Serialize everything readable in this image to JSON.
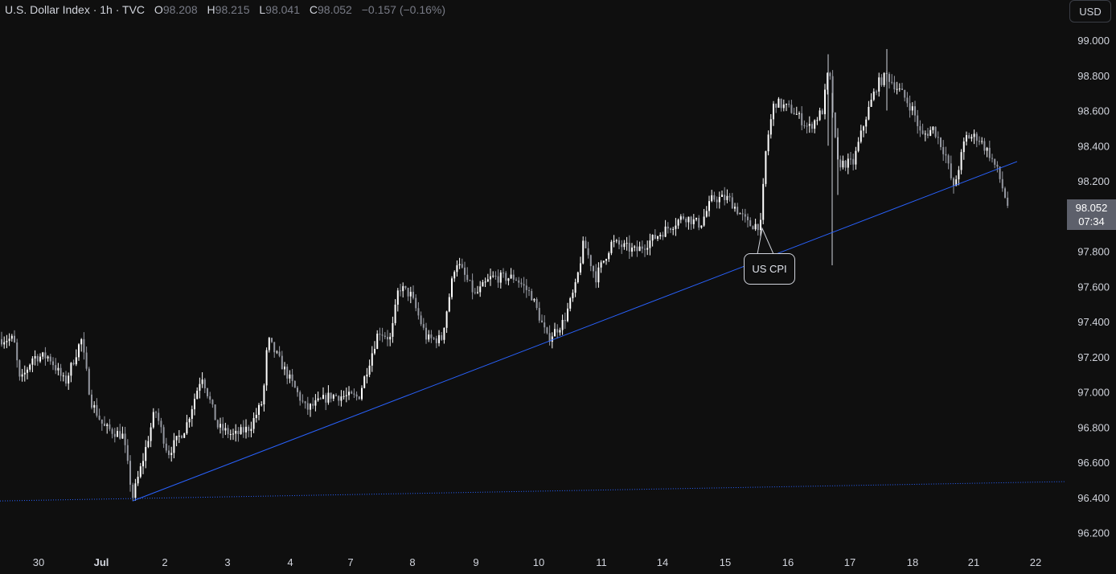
{
  "header": {
    "symbol": "U.S. Dollar Index · 1h · TVC",
    "o_label": "O",
    "o_value": "98.208",
    "h_label": "H",
    "h_value": "98.215",
    "l_label": "L",
    "l_value": "98.041",
    "c_label": "C",
    "c_value": "98.052",
    "change": "−0.157 (−0.16%)"
  },
  "currency_button": "USD",
  "last_price": {
    "value": "98.052",
    "countdown": "07:34"
  },
  "annotation": "US CPI",
  "colors": {
    "background": "#0f0f0f",
    "candle_up": "#ffffff",
    "candle_down": "#9598a1",
    "trendline": "#2962ff",
    "price_tag": "#5d606b"
  },
  "chart_data": {
    "type": "candlestick",
    "interval": "1h",
    "ylim": [
      96.1,
      99.1
    ],
    "y_ticks": [
      "99.000",
      "98.800",
      "98.600",
      "98.400",
      "98.200",
      "98.000",
      "97.800",
      "97.600",
      "97.400",
      "97.200",
      "97.000",
      "96.800",
      "96.600",
      "96.400",
      "96.200"
    ],
    "y_tick_values": [
      99.0,
      98.8,
      98.6,
      98.4,
      98.2,
      98.0,
      97.8,
      97.6,
      97.4,
      97.2,
      97.0,
      96.8,
      96.6,
      96.4,
      96.2
    ],
    "x_ticks": [
      "30",
      "Jul",
      "2",
      "3",
      "4",
      "7",
      "8",
      "9",
      "10",
      "11",
      "14",
      "15",
      "16",
      "17",
      "18",
      "21",
      "22"
    ],
    "x_bold": [
      "Jul"
    ],
    "anchors": [
      [
        0,
        97.3
      ],
      [
        16,
        97.3
      ],
      [
        24,
        97.05
      ],
      [
        40,
        97.2
      ],
      [
        60,
        97.2
      ],
      [
        80,
        97.05
      ],
      [
        100,
        97.3
      ],
      [
        112,
        96.95
      ],
      [
        128,
        96.8
      ],
      [
        152,
        96.75
      ],
      [
        164,
        96.4
      ],
      [
        176,
        96.6
      ],
      [
        192,
        96.9
      ],
      [
        208,
        96.65
      ],
      [
        230,
        96.8
      ],
      [
        250,
        97.1
      ],
      [
        270,
        96.8
      ],
      [
        290,
        96.75
      ],
      [
        310,
        96.8
      ],
      [
        326,
        96.95
      ],
      [
        332,
        97.3
      ],
      [
        350,
        97.15
      ],
      [
        380,
        96.9
      ],
      [
        410,
        96.98
      ],
      [
        445,
        96.97
      ],
      [
        470,
        97.35
      ],
      [
        485,
        97.3
      ],
      [
        495,
        97.6
      ],
      [
        510,
        97.55
      ],
      [
        530,
        97.3
      ],
      [
        548,
        97.3
      ],
      [
        566,
        97.75
      ],
      [
        590,
        97.55
      ],
      [
        610,
        97.65
      ],
      [
        640,
        97.65
      ],
      [
        660,
        97.55
      ],
      [
        680,
        97.3
      ],
      [
        700,
        97.4
      ],
      [
        715,
        97.6
      ],
      [
        725,
        97.85
      ],
      [
        740,
        97.65
      ],
      [
        760,
        97.85
      ],
      [
        790,
        97.8
      ],
      [
        820,
        97.9
      ],
      [
        850,
        98.0
      ],
      [
        870,
        97.95
      ],
      [
        885,
        98.1
      ],
      [
        905,
        98.1
      ],
      [
        930,
        97.95
      ],
      [
        945,
        97.95
      ],
      [
        952,
        98.4
      ],
      [
        962,
        98.65
      ],
      [
        985,
        98.6
      ],
      [
        1005,
        98.5
      ],
      [
        1022,
        98.6
      ],
      [
        1030,
        98.85
      ],
      [
        1040,
        98.3
      ],
      [
        1060,
        98.3
      ],
      [
        1075,
        98.55
      ],
      [
        1090,
        98.75
      ],
      [
        1102,
        98.8
      ],
      [
        1120,
        98.7
      ],
      [
        1135,
        98.6
      ],
      [
        1145,
        98.45
      ],
      [
        1160,
        98.5
      ],
      [
        1175,
        98.35
      ],
      [
        1185,
        98.15
      ],
      [
        1200,
        98.45
      ],
      [
        1215,
        98.45
      ],
      [
        1230,
        98.35
      ],
      [
        1240,
        98.25
      ],
      [
        1253,
        98.05
      ]
    ],
    "trendline": {
      "from": [
        165,
        96.38
      ],
      "to": [
        1265,
        98.31
      ]
    },
    "dotted_line": {
      "from": [
        0,
        96.38
      ],
      "to": [
        1325,
        96.49
      ]
    },
    "annotation_point": [
      948,
      97.93
    ]
  }
}
